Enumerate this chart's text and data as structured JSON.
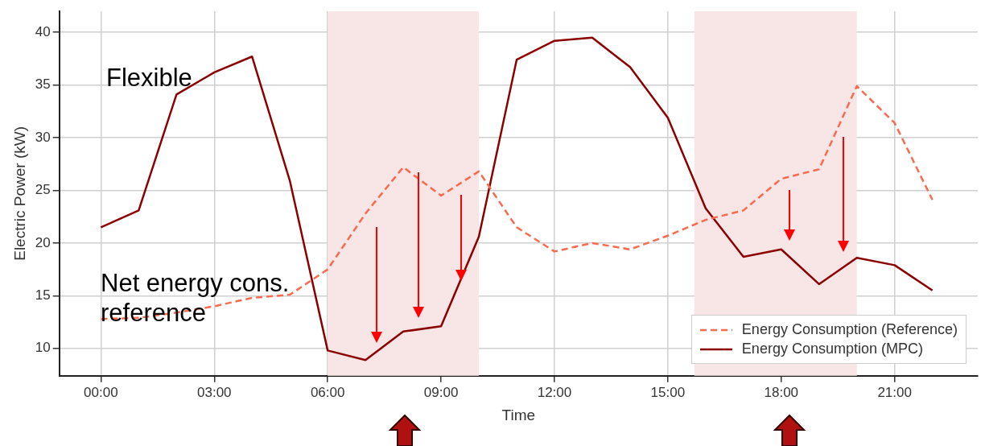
{
  "chart_data": {
    "type": "line",
    "xlabel": "Time",
    "ylabel": "Electric Power (kW)",
    "x": [
      0,
      1,
      2,
      3,
      4,
      5,
      6,
      7,
      8,
      9,
      10,
      11,
      12,
      13,
      14,
      15,
      16,
      17,
      18,
      19,
      20,
      21,
      22
    ],
    "xlim": [
      -1.1,
      23.2
    ],
    "xticks": [
      {
        "value": 0,
        "label": "00:00"
      },
      {
        "value": 3,
        "label": "03:00"
      },
      {
        "value": 6,
        "label": "06:00"
      },
      {
        "value": 9,
        "label": "09:00"
      },
      {
        "value": 12,
        "label": "12:00"
      },
      {
        "value": 15,
        "label": "15:00"
      },
      {
        "value": 18,
        "label": "18:00"
      },
      {
        "value": 21,
        "label": "21:00"
      }
    ],
    "ylim": [
      7.4,
      42
    ],
    "yticks": [
      10,
      15,
      20,
      25,
      30,
      35,
      40
    ],
    "series": [
      {
        "name": "Energy Consumption (Reference)",
        "color": "#fa6a4f",
        "line_style": "dashed",
        "values": [
          12.8,
          12.9,
          13.4,
          14.0,
          14.8,
          15.1,
          17.5,
          22.8,
          27.2,
          24.5,
          26.8,
          21.5,
          19.2,
          20.0,
          19.4,
          20.7,
          22.2,
          23.1,
          26.1,
          27.0,
          34.9,
          31.4,
          24.1
        ]
      },
      {
        "name": "Energy Consumption (MPC)",
        "color": "#8b0000",
        "line_style": "solid",
        "values": [
          21.5,
          23.1,
          34.1,
          36.2,
          37.7,
          25.9,
          9.8,
          8.9,
          11.6,
          12.1,
          20.6,
          37.4,
          39.2,
          39.5,
          36.7,
          31.9,
          23.3,
          18.7,
          19.4,
          16.1,
          18.6,
          17.9,
          15.5
        ]
      }
    ],
    "bands": [
      {
        "axis": "x",
        "from": 6,
        "to": 10,
        "color": "#f8e5e5"
      },
      {
        "axis": "x",
        "from": 15.7,
        "to": 20,
        "color": "#f8e5e5"
      }
    ],
    "annotations": [
      "Flexible",
      "Net energy cons. reference"
    ],
    "grid": true,
    "legend": "bottom right",
    "marker": "none"
  }
}
